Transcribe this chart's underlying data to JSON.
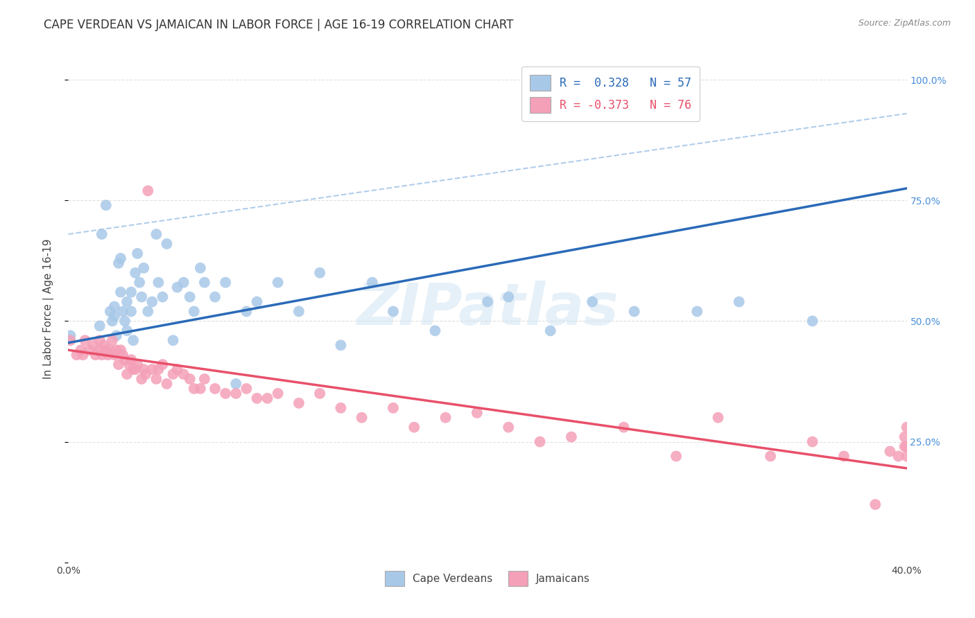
{
  "title": "CAPE VERDEAN VS JAMAICAN IN LABOR FORCE | AGE 16-19 CORRELATION CHART",
  "source": "Source: ZipAtlas.com",
  "ylabel": "In Labor Force | Age 16-19",
  "xlim": [
    0.0,
    0.4
  ],
  "ylim": [
    0.0,
    1.05
  ],
  "yticks": [
    0.0,
    0.25,
    0.5,
    0.75,
    1.0
  ],
  "ytick_labels": [
    "",
    "25.0%",
    "50.0%",
    "75.0%",
    "100.0%"
  ],
  "xticks": [
    0.0,
    0.05,
    0.1,
    0.15,
    0.2,
    0.25,
    0.3,
    0.35,
    0.4
  ],
  "xtick_labels": [
    "0.0%",
    "",
    "",
    "",
    "",
    "",
    "",
    "",
    "40.0%"
  ],
  "cv_R": 0.328,
  "cv_N": 57,
  "jam_R": -0.373,
  "jam_N": 76,
  "cv_color": "#a8c8e8",
  "jam_color": "#f4a0b8",
  "cv_line_color": "#2a6ab8",
  "jam_line_color": "#e8506a",
  "dashed_line_color": "#a8c8e8",
  "watermark_text": "ZIPatlas",
  "background_color": "#ffffff",
  "grid_color": "#e0e0e0",
  "title_fontsize": 12,
  "axis_label_fontsize": 10,
  "tick_fontsize": 9,
  "legend_fontsize": 12,
  "source_fontsize": 9,
  "watermark_fontsize": 60,
  "watermark_color": "#c8dff0",
  "watermark_alpha": 0.45,
  "cv_scatter_x": [
    0.001,
    0.015,
    0.016,
    0.018,
    0.02,
    0.021,
    0.022,
    0.022,
    0.023,
    0.024,
    0.025,
    0.025,
    0.026,
    0.027,
    0.028,
    0.028,
    0.03,
    0.03,
    0.031,
    0.032,
    0.033,
    0.034,
    0.035,
    0.036,
    0.038,
    0.04,
    0.042,
    0.043,
    0.045,
    0.047,
    0.05,
    0.052,
    0.055,
    0.058,
    0.06,
    0.063,
    0.065,
    0.07,
    0.075,
    0.08,
    0.085,
    0.09,
    0.1,
    0.11,
    0.12,
    0.13,
    0.145,
    0.155,
    0.175,
    0.2,
    0.21,
    0.23,
    0.25,
    0.27,
    0.3,
    0.32,
    0.355
  ],
  "cv_scatter_y": [
    0.47,
    0.49,
    0.68,
    0.74,
    0.52,
    0.5,
    0.51,
    0.53,
    0.47,
    0.62,
    0.56,
    0.63,
    0.52,
    0.5,
    0.48,
    0.54,
    0.52,
    0.56,
    0.46,
    0.6,
    0.64,
    0.58,
    0.55,
    0.61,
    0.52,
    0.54,
    0.68,
    0.58,
    0.55,
    0.66,
    0.46,
    0.57,
    0.58,
    0.55,
    0.52,
    0.61,
    0.58,
    0.55,
    0.58,
    0.37,
    0.52,
    0.54,
    0.58,
    0.52,
    0.6,
    0.45,
    0.58,
    0.52,
    0.48,
    0.54,
    0.55,
    0.48,
    0.54,
    0.52,
    0.52,
    0.54,
    0.5
  ],
  "jam_scatter_x": [
    0.001,
    0.004,
    0.006,
    0.007,
    0.008,
    0.01,
    0.012,
    0.013,
    0.015,
    0.015,
    0.016,
    0.017,
    0.018,
    0.019,
    0.02,
    0.021,
    0.022,
    0.023,
    0.024,
    0.025,
    0.026,
    0.027,
    0.028,
    0.029,
    0.03,
    0.031,
    0.032,
    0.033,
    0.035,
    0.036,
    0.037,
    0.038,
    0.04,
    0.042,
    0.043,
    0.045,
    0.047,
    0.05,
    0.052,
    0.055,
    0.058,
    0.06,
    0.063,
    0.065,
    0.07,
    0.075,
    0.08,
    0.085,
    0.09,
    0.095,
    0.1,
    0.11,
    0.12,
    0.13,
    0.14,
    0.155,
    0.165,
    0.18,
    0.195,
    0.21,
    0.225,
    0.24,
    0.265,
    0.29,
    0.31,
    0.335,
    0.355,
    0.37,
    0.385,
    0.392,
    0.396,
    0.399,
    0.399,
    0.4,
    0.4,
    0.4
  ],
  "jam_scatter_y": [
    0.46,
    0.43,
    0.44,
    0.43,
    0.46,
    0.44,
    0.45,
    0.43,
    0.44,
    0.46,
    0.43,
    0.45,
    0.44,
    0.43,
    0.44,
    0.46,
    0.43,
    0.44,
    0.41,
    0.44,
    0.43,
    0.42,
    0.39,
    0.41,
    0.42,
    0.4,
    0.4,
    0.41,
    0.38,
    0.4,
    0.39,
    0.77,
    0.4,
    0.38,
    0.4,
    0.41,
    0.37,
    0.39,
    0.4,
    0.39,
    0.38,
    0.36,
    0.36,
    0.38,
    0.36,
    0.35,
    0.35,
    0.36,
    0.34,
    0.34,
    0.35,
    0.33,
    0.35,
    0.32,
    0.3,
    0.32,
    0.28,
    0.3,
    0.31,
    0.28,
    0.25,
    0.26,
    0.28,
    0.22,
    0.3,
    0.22,
    0.25,
    0.22,
    0.12,
    0.23,
    0.22,
    0.24,
    0.26,
    0.28,
    0.24,
    0.22
  ]
}
